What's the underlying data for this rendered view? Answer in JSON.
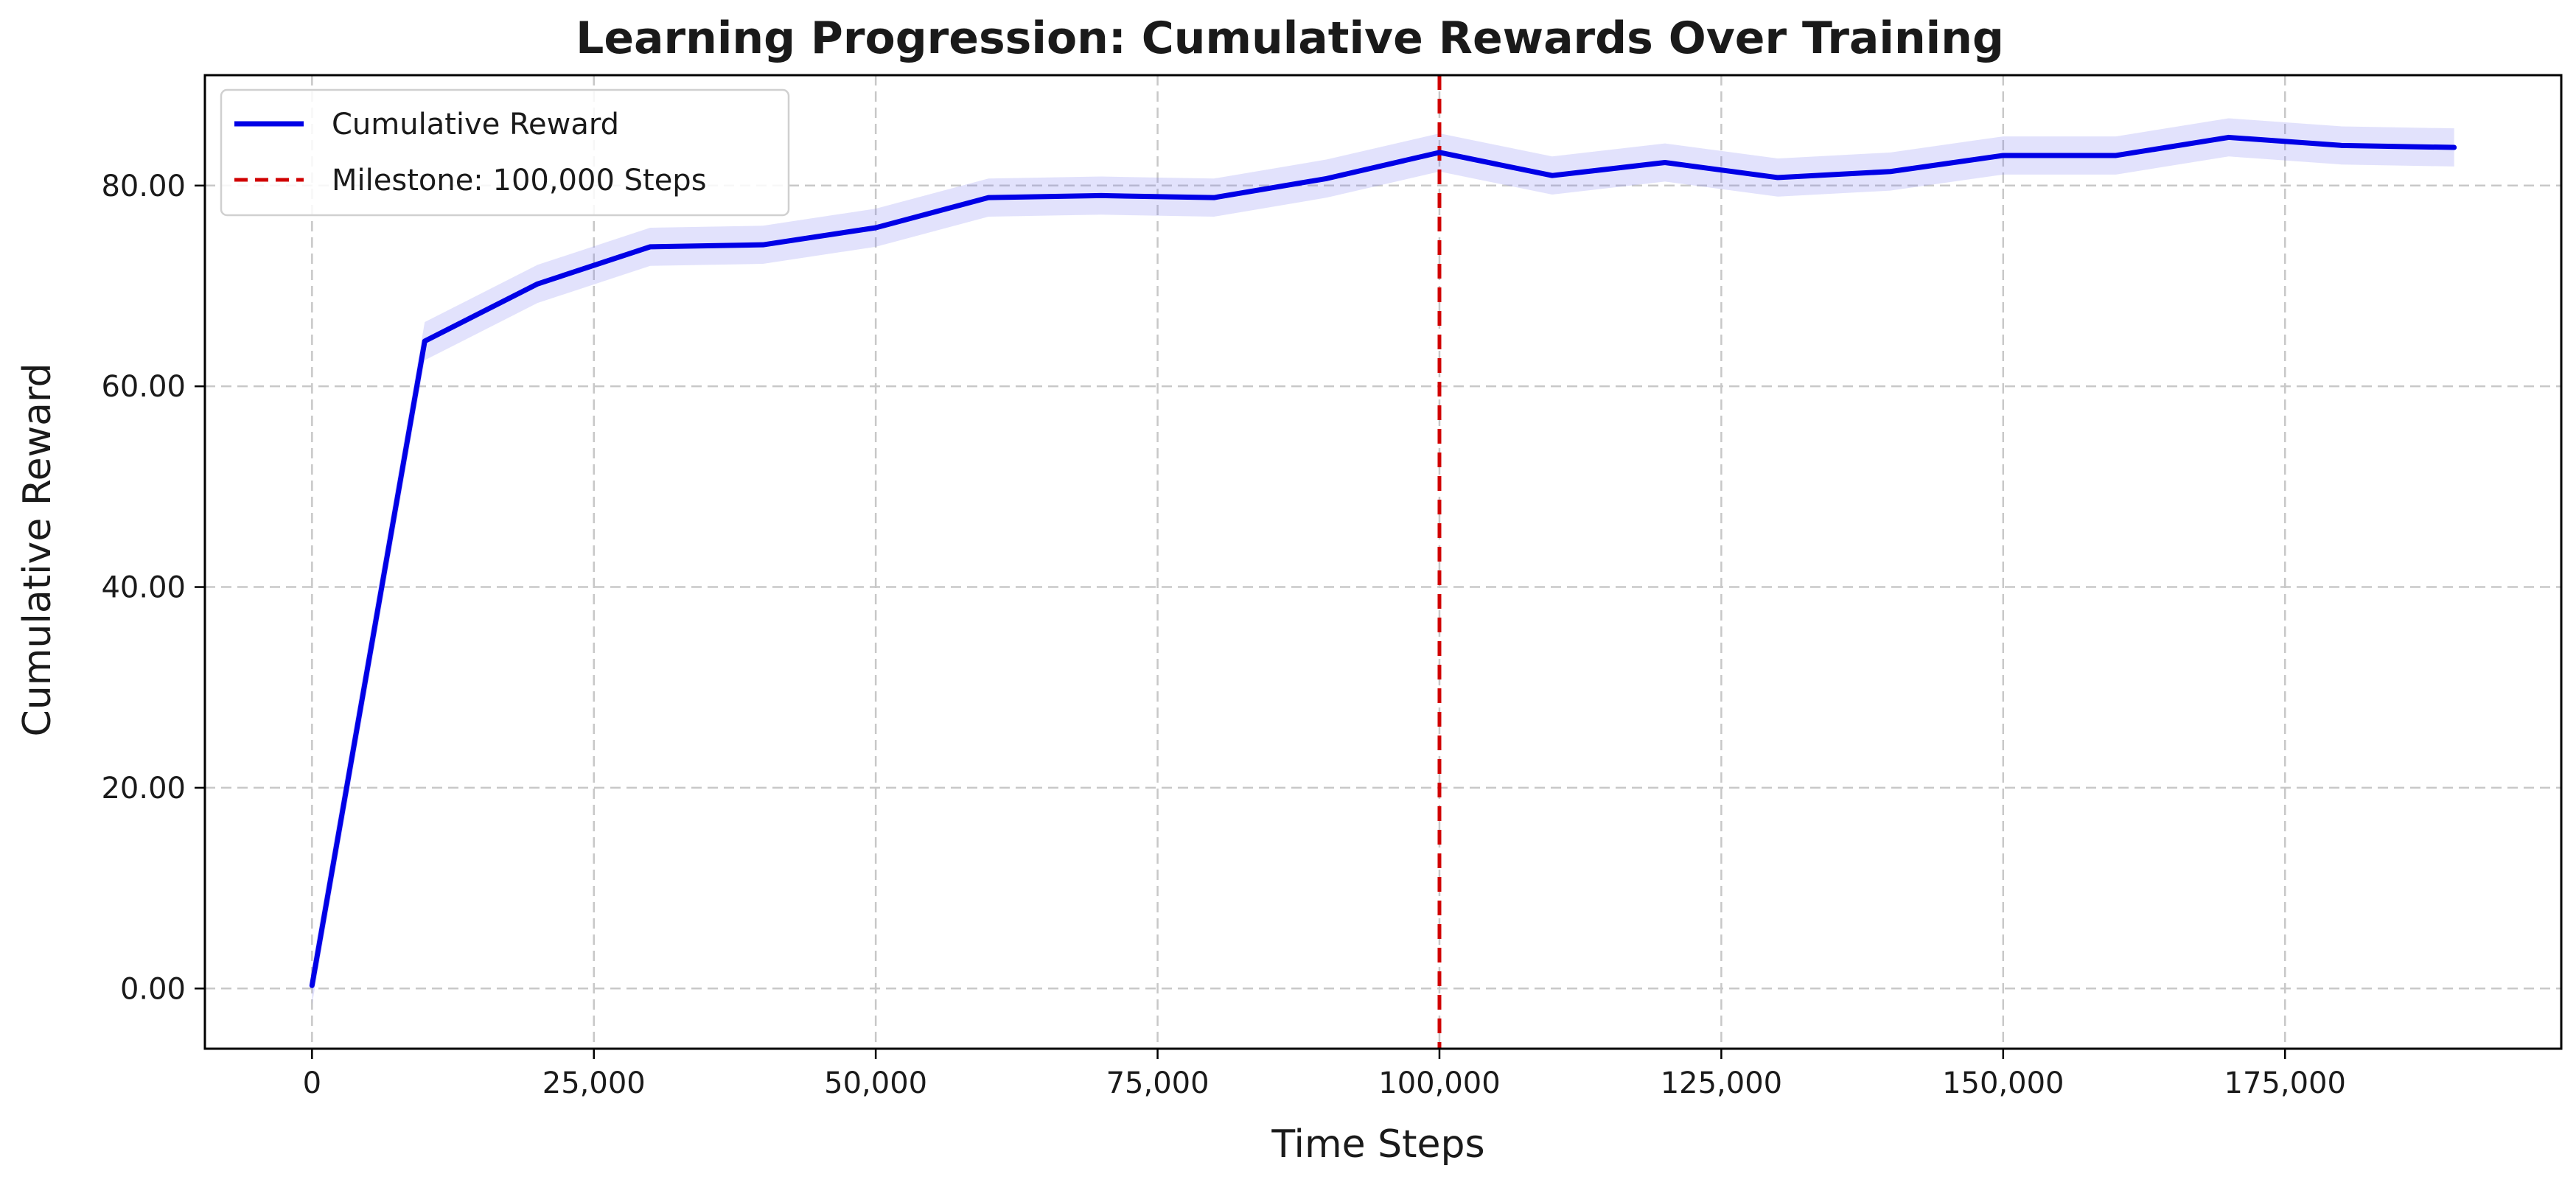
{
  "chart_data": {
    "type": "line",
    "title": "Learning Progression: Cumulative Rewards Over Training",
    "xlabel": "Time Steps",
    "ylabel": "Cumulative Reward",
    "xlim": [
      -9500,
      199500
    ],
    "ylim": [
      -6,
      91
    ],
    "grid": true,
    "legend_position": "top-left",
    "x_ticks": [
      0,
      25000,
      50000,
      75000,
      100000,
      125000,
      150000,
      175000
    ],
    "x_tick_labels": [
      "0",
      "25,000",
      "50,000",
      "75,000",
      "100,000",
      "125,000",
      "150,000",
      "175,000"
    ],
    "y_ticks": [
      0,
      20,
      40,
      60,
      80
    ],
    "y_tick_labels": [
      "0.00",
      "20.00",
      "40.00",
      "60.00",
      "80.00"
    ],
    "x": [
      0,
      10000,
      20000,
      30000,
      40000,
      50000,
      60000,
      70000,
      80000,
      90000,
      100000,
      110000,
      120000,
      130000,
      140000,
      150000,
      160000,
      170000,
      180000,
      190000
    ],
    "series": [
      {
        "name": "Cumulative Reward",
        "color": "#0000e6",
        "band_color": "#7b7bf2",
        "values": [
          0.3,
          64.5,
          70.2,
          73.9,
          74.1,
          75.8,
          78.8,
          79.0,
          78.8,
          80.7,
          83.3,
          81.0,
          82.3,
          80.8,
          81.4,
          83.0,
          83.0,
          84.8,
          84.0,
          83.8
        ],
        "band": 1.9
      }
    ],
    "annotations": [
      {
        "type": "vline",
        "x": 100000,
        "label": "Milestone: 100,000 Steps",
        "color": "#d00000",
        "style": "dashed"
      }
    ]
  }
}
